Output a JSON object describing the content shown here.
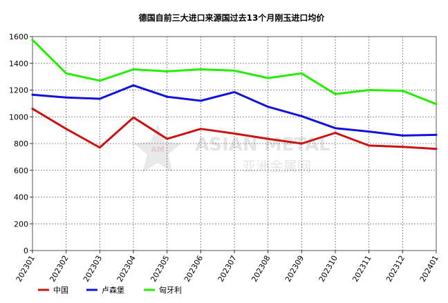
{
  "chart_data": {
    "type": "line",
    "title": "德国自前三大进口来源国过去13个月刚玉进口均价",
    "xlabel": "",
    "ylabel": "",
    "categories": [
      "202301",
      "202302",
      "202303",
      "202304",
      "202305",
      "202306",
      "202307",
      "202308",
      "202309",
      "202310",
      "202311",
      "202312",
      "202401"
    ],
    "ylim": [
      0,
      1600
    ],
    "yticks": [
      0,
      200,
      400,
      600,
      800,
      1000,
      1200,
      1400,
      1600
    ],
    "grid": true,
    "legend_position": "bottom",
    "series": [
      {
        "name": "中国",
        "color": "#cc1111",
        "values": [
          1060,
          910,
          770,
          995,
          835,
          910,
          875,
          835,
          800,
          880,
          785,
          775,
          760
        ]
      },
      {
        "name": "卢森堡",
        "color": "#1111dd",
        "values": [
          1165,
          1145,
          1135,
          1235,
          1150,
          1120,
          1185,
          1075,
          1005,
          915,
          890,
          860,
          865
        ]
      },
      {
        "name": "匈牙利",
        "color": "#22ee00",
        "values": [
          1575,
          1325,
          1270,
          1355,
          1340,
          1355,
          1345,
          1290,
          1325,
          1170,
          1200,
          1195,
          1095
        ]
      }
    ]
  },
  "watermark": {
    "line1": "ASIAN METAL",
    "line2": "亚洲金属网",
    "logo": "AM"
  }
}
